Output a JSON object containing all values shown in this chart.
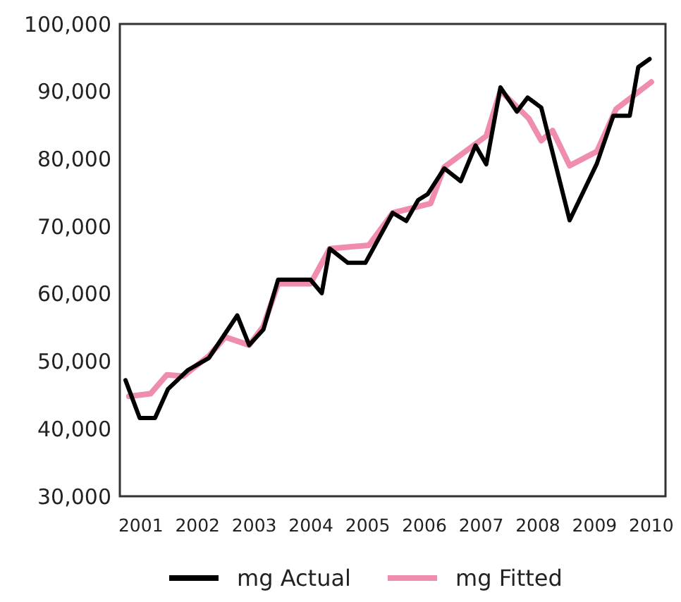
{
  "chart_data": {
    "type": "line",
    "xlim": [
      2000.63,
      2010.25
    ],
    "xticks": [
      2001,
      2002,
      2003,
      2004,
      2005,
      2006,
      2007,
      2008,
      2009,
      2010
    ],
    "ylim": [
      30000,
      100000
    ],
    "yticks": [
      {
        "value": 30000,
        "label": "30,000"
      },
      {
        "value": 40000,
        "label": "40,000"
      },
      {
        "value": 50000,
        "label": "50,000"
      },
      {
        "value": 60000,
        "label": "60,000"
      },
      {
        "value": 70000,
        "label": "70,000"
      },
      {
        "value": 80000,
        "label": "80,000"
      },
      {
        "value": 90000,
        "label": "90,000"
      },
      {
        "value": 100000,
        "label": "100,000"
      }
    ],
    "grid": false,
    "legend": "bottom",
    "marker": "none",
    "line_style": "solid",
    "series": [
      {
        "name": "mg Fitted",
        "color": "#f08cac",
        "x": [
          2000.79,
          2001.17,
          2001.46,
          2001.75,
          2002.2,
          2002.49,
          2002.91,
          2003.16,
          2003.42,
          2003.99,
          2004.33,
          2005.02,
          2005.44,
          2006.11,
          2006.35,
          2007.09,
          2007.34,
          2007.84,
          2008.06,
          2008.26,
          2008.56,
          2009.04,
          2009.38,
          2010.0
        ],
        "values": [
          44800,
          45200,
          48000,
          47800,
          50800,
          53600,
          52400,
          55200,
          61500,
          61500,
          66700,
          67200,
          72000,
          73400,
          78800,
          83400,
          90100,
          86000,
          82700,
          84200,
          79000,
          81100,
          87400,
          91400
        ]
      },
      {
        "name": "mg Actual",
        "color": "#000000",
        "x": [
          2000.73,
          2000.98,
          2001.25,
          2001.48,
          2001.83,
          2002.2,
          2002.7,
          2002.91,
          2003.16,
          2003.42,
          2003.99,
          2004.19,
          2004.33,
          2004.65,
          2004.96,
          2005.44,
          2005.68,
          2005.89,
          2006.06,
          2006.35,
          2006.64,
          2006.9,
          2007.09,
          2007.34,
          2007.63,
          2007.82,
          2008.06,
          2008.56,
          2009.04,
          2009.33,
          2009.62,
          2009.77,
          2009.97
        ],
        "values": [
          47200,
          41600,
          41600,
          45900,
          48700,
          50500,
          56800,
          52400,
          54700,
          62100,
          62100,
          60100,
          66700,
          64600,
          64600,
          72000,
          70800,
          73900,
          74800,
          78600,
          76700,
          82000,
          79200,
          90600,
          87000,
          89100,
          87600,
          70900,
          79300,
          86400,
          86400,
          93600,
          94800
        ]
      }
    ]
  }
}
